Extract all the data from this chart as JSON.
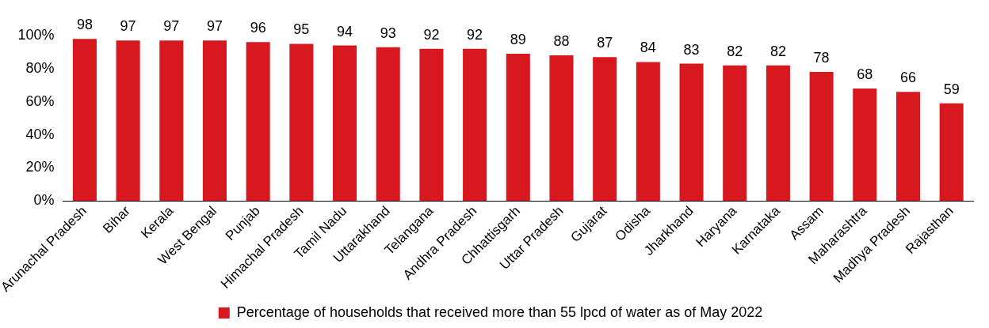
{
  "chart_data": {
    "type": "bar",
    "categories": [
      "Arunachal Pradesh",
      "Bihar",
      "Kerala",
      "West Bengal",
      "Punjab",
      "Himachal Pradesh",
      "Tamil Nadu",
      "Uttarakhand",
      "Telangana",
      "Andhra Pradesh",
      "Chhattisgarh",
      "Uttar Pradesh",
      "Gujarat",
      "Odisha",
      "Jharkhand",
      "Haryana",
      "Karnataka",
      "Assam",
      "Maharashtra",
      "Madhya Pradesh",
      "Rajasthan"
    ],
    "series": [
      {
        "name": "Percentage of households that received more than 55 lpcd of water as of May 2022",
        "color": "#d7191f",
        "values": [
          98,
          97,
          97,
          97,
          96,
          95,
          94,
          93,
          92,
          92,
          89,
          88,
          87,
          84,
          83,
          82,
          82,
          78,
          68,
          66,
          59
        ]
      }
    ],
    "ylim": [
      0,
      100
    ],
    "yticks": [
      {
        "value": 0,
        "label": "0%"
      },
      {
        "value": 20,
        "label": "20%"
      },
      {
        "value": 40,
        "label": "40%"
      },
      {
        "value": 60,
        "label": "60%"
      },
      {
        "value": 80,
        "label": "80%"
      },
      {
        "value": 100,
        "label": "100%"
      }
    ],
    "data_labels": true,
    "grid": false,
    "legend": "bottom"
  }
}
